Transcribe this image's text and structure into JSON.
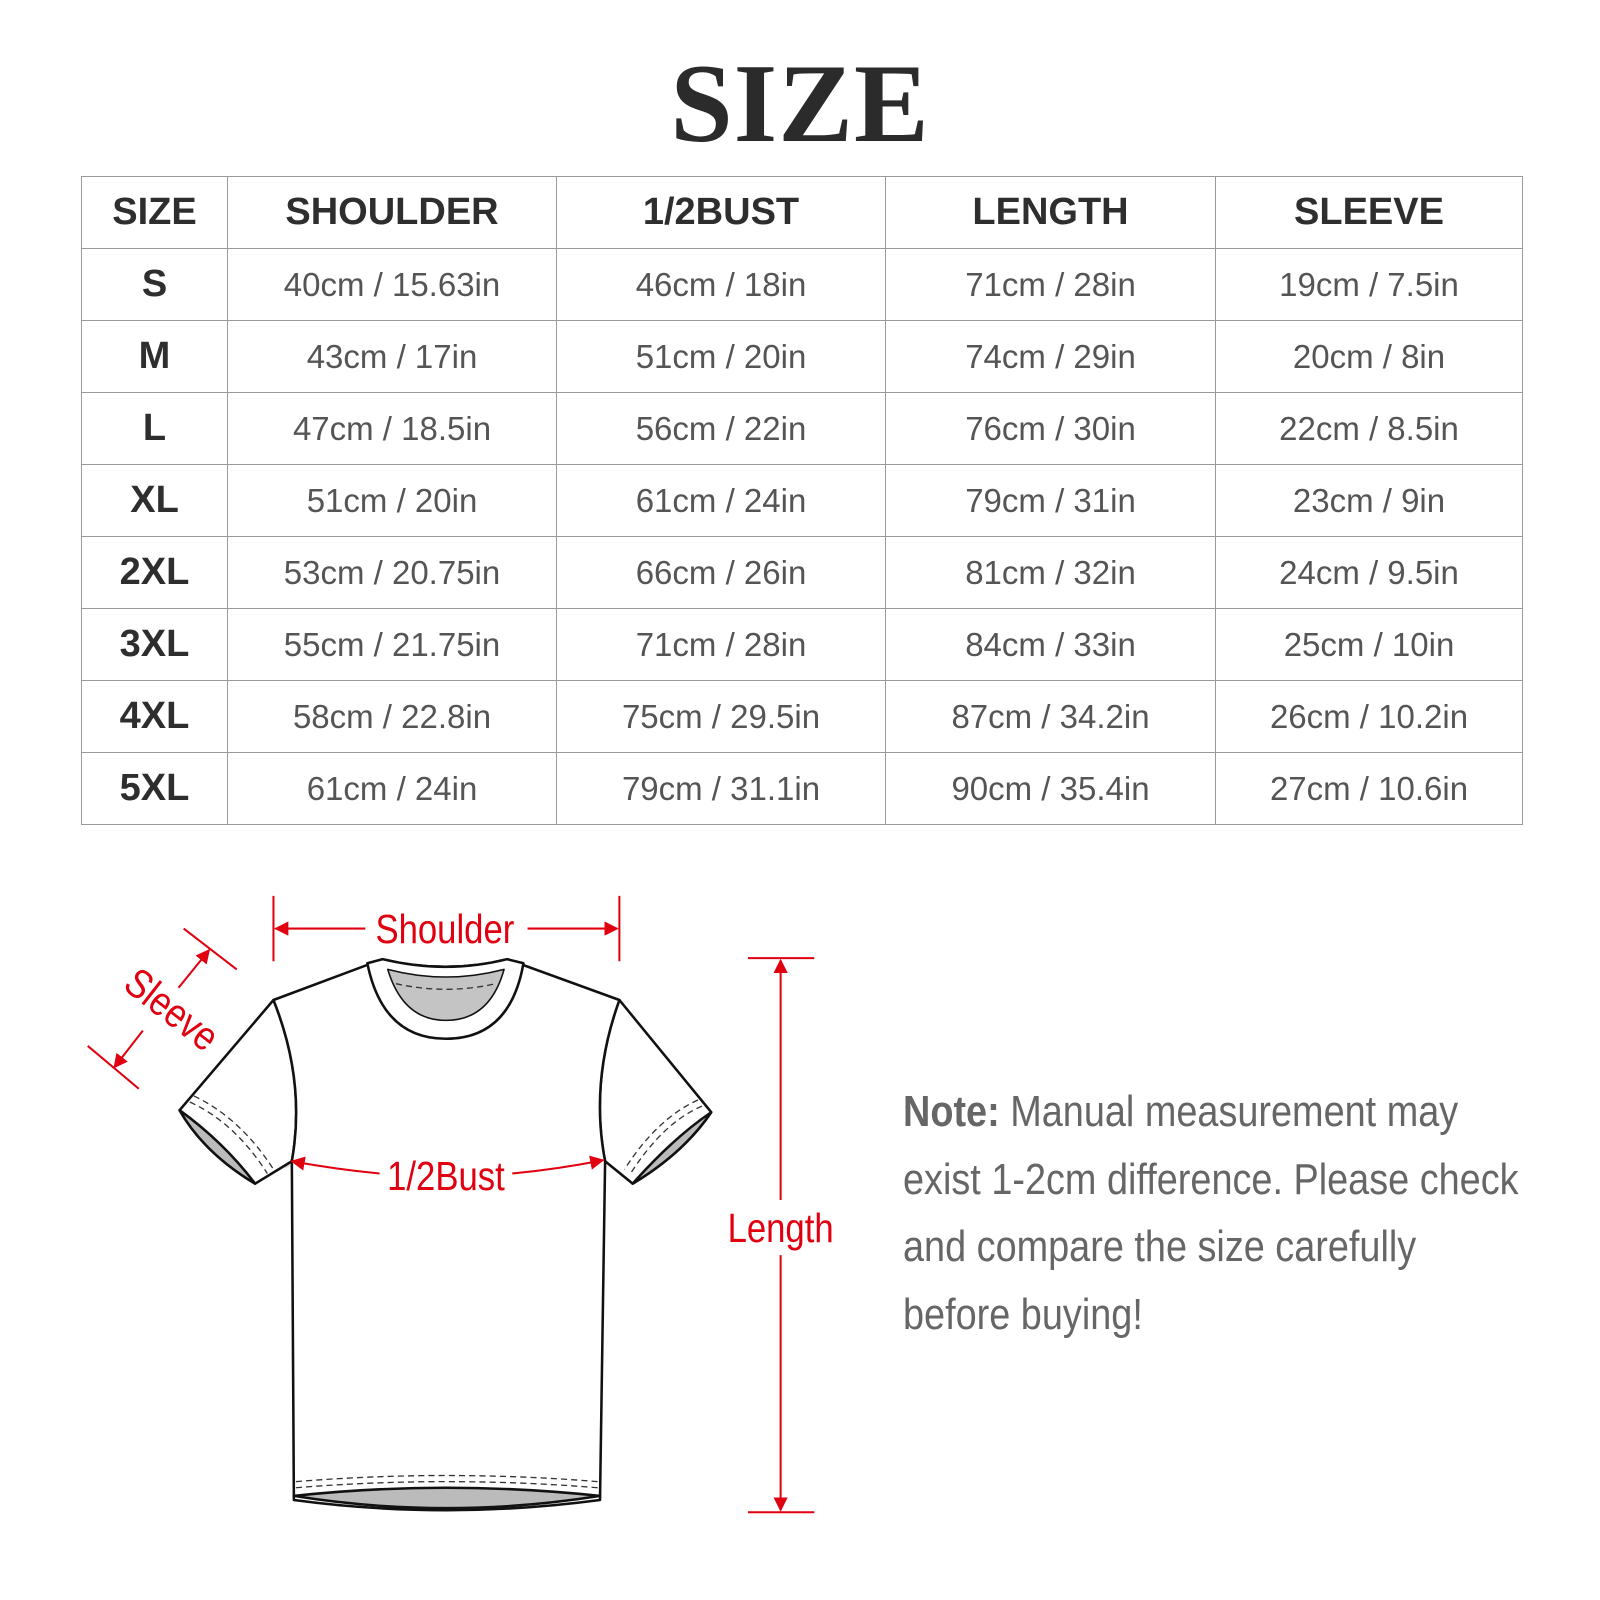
{
  "title": "SIZE",
  "table": {
    "headers": [
      "SIZE",
      "SHOULDER",
      "1/2BUST",
      "LENGTH",
      "SLEEVE"
    ],
    "rows": [
      [
        "S",
        "40cm / 15.63in",
        "46cm / 18in",
        "71cm / 28in",
        "19cm / 7.5in"
      ],
      [
        "M",
        "43cm / 17in",
        "51cm / 20in",
        "74cm / 29in",
        "20cm / 8in"
      ],
      [
        "L",
        "47cm / 18.5in",
        "56cm / 22in",
        "76cm / 30in",
        "22cm / 8.5in"
      ],
      [
        "XL",
        "51cm / 20in",
        "61cm / 24in",
        "79cm / 31in",
        "23cm / 9in"
      ],
      [
        "2XL",
        "53cm / 20.75in",
        "66cm / 26in",
        "81cm / 32in",
        "24cm / 9.5in"
      ],
      [
        "3XL",
        "55cm / 21.75in",
        "71cm / 28in",
        "84cm / 33in",
        "25cm / 10in"
      ],
      [
        "4XL",
        "58cm / 22.8in",
        "75cm / 29.5in",
        "87cm / 34.2in",
        "26cm / 10.2in"
      ],
      [
        "5XL",
        "61cm / 24in",
        "79cm / 31.1in",
        "90cm / 35.4in",
        "27cm / 10.6in"
      ]
    ]
  },
  "diagram": {
    "shoulder_label": "Shoulder",
    "sleeve_label": "Sleeve",
    "bust_label": "1/2Bust",
    "length_label": "Length",
    "annotation_color": "#e0000f"
  },
  "note": {
    "label": "Note:",
    "text": "Manual measurement may exist 1-2cm difference. Please check and compare the size carefully before buying!"
  }
}
